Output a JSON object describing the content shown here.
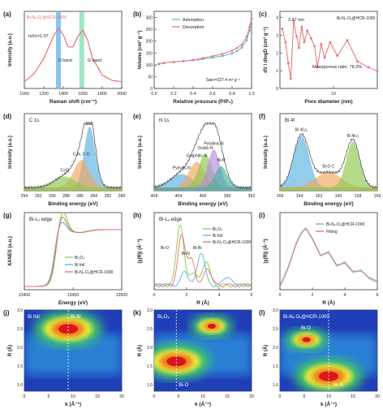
{
  "panels": [
    {
      "letter": "(a)",
      "xlabel": "Raman shift (cm⁻¹)",
      "ylabel": "Intensity (a.u.)",
      "xticks": [
        "1000",
        "1200",
        "1400",
        "1600",
        "1800",
        "2000"
      ],
      "legend": "Bi-Nₓ-Oₓ@HCR-1000",
      "ratio": "Iᴅ/Iɢ=1.07",
      "bands": [
        "D band",
        "G band"
      ]
    },
    {
      "letter": "(b)",
      "xlabel": "Relative pressure (P/P₀)",
      "ylabel": "Volume (cm³ g⁻¹)",
      "xticks": [
        "0.0",
        "0.2",
        "0.4",
        "0.6",
        "0.8",
        "1.0"
      ],
      "yticks": [
        "0",
        "50",
        "100",
        "150",
        "200",
        "250",
        "300"
      ],
      "series": [
        "Adsorption",
        "Desorption"
      ],
      "annotation": "Sʙᴇᴛ=227.4 m² g⁻¹"
    },
    {
      "letter": "(c)",
      "xlabel": "Pore diameter (nm)",
      "ylabel": "dV / dlogD (cm³ g⁻¹)",
      "xticks": [
        "10"
      ],
      "yticks": [
        "0",
        "1",
        "2",
        "3",
        "4"
      ],
      "legend": "Bi-Nₓ-Oₓ@HCR-1000",
      "peak": "3.47 nm",
      "annotation": "Mesoporous ratio: 78.2%"
    },
    {
      "letter": "(d)",
      "xlabel": "Binding energy (eV)",
      "ylabel": "Intensity (a.u.)",
      "xticks": [
        "294",
        "292",
        "290",
        "288",
        "286",
        "284",
        "282",
        "280"
      ],
      "title": "C 1s",
      "peaks": [
        "C-C",
        "C-N, C-O",
        "C=O"
      ]
    },
    {
      "letter": "(e)",
      "xlabel": "Binding energy (eV)",
      "ylabel": "Intensity (a.u.)",
      "xticks": [
        "408",
        "404",
        "400",
        "396",
        "392"
      ],
      "title": "N 1s",
      "peaks": [
        "Pyrrolic-N",
        "Graphitic-N",
        "Oxidic-N",
        "Pyridinic-N",
        "Bi-N"
      ]
    },
    {
      "letter": "(f)",
      "xlabel": "Binding energy (eV)",
      "ylabel": "Intensity (a.u.)",
      "xticks": [
        "166",
        "164",
        "162",
        "160",
        "158",
        "156"
      ],
      "title": "Bi 4f",
      "peaks": [
        "Bi 4f₅/₂",
        "Bi-O-C",
        "Bi 4f₇/₂"
      ]
    },
    {
      "letter": "(g)",
      "xlabel": "Energy (eV)",
      "ylabel": "XANES (a.u.)",
      "xticks": [
        "13400",
        "13450",
        "13500"
      ],
      "title": "Bi-L₃ edge",
      "series": [
        "Bi₂O₃",
        "Bi foil",
        "Bi-Nₓ-Oₓ@HCR-1000"
      ]
    },
    {
      "letter": "(h)",
      "xlabel": "R (Å)",
      "ylabel": "|χ(R)| (Å⁻³)",
      "xticks": [
        "0",
        "2",
        "4",
        "6"
      ],
      "title": "Bi-L₃ edge",
      "series": [
        "Bi₂O₃",
        "Bi foil",
        "Bi-Nₓ-Oₓ@HCR-1000"
      ],
      "peaks": [
        "Bi-O",
        "Bi-N",
        "Bi-Bi"
      ]
    },
    {
      "letter": "(i)",
      "xlabel": "R (Å)",
      "ylabel": "|χ(R)| (Å⁻³)",
      "xticks": [
        "0",
        "2",
        "4",
        "6"
      ],
      "series": [
        "Bi-Nₓ-Oₓ@HCR-1000",
        "Fitting"
      ]
    },
    {
      "letter": "(j)",
      "xlabel": "k (Å⁻¹)",
      "ylabel": "R (Å)",
      "xticks": [
        "0",
        "5",
        "10",
        "15",
        "20"
      ],
      "yticks": [
        "1.0",
        "1.5",
        "2.0",
        "2.5",
        "3.0"
      ],
      "sample": "Bi foil",
      "feature": "Bi-Bi"
    },
    {
      "letter": "(k)",
      "xlabel": "k (Å⁻¹)",
      "ylabel": "R (Å)",
      "xticks": [
        "0",
        "5",
        "10",
        "15",
        "20"
      ],
      "yticks": [
        "1.0",
        "1.5",
        "2.0",
        "2.5",
        "3.0"
      ],
      "sample": "Bi₂O₃",
      "feature": "Bi-O"
    },
    {
      "letter": "(l)",
      "xlabel": "k (Å⁻¹)",
      "ylabel": "R (Å)",
      "xticks": [
        "0",
        "5",
        "10",
        "15",
        "20"
      ],
      "yticks": [
        "1.0",
        "1.5",
        "2.0",
        "2.5",
        "3.0"
      ],
      "sample": "Bi-Nₓ-Oₓ@HCR-1000",
      "features": [
        "Bi-O",
        "Bi-N"
      ]
    }
  ],
  "chart_data": [
    {
      "panel": "a",
      "type": "line",
      "xlim": [
        1000,
        2000
      ],
      "series": [
        {
          "x": [
            1000,
            1100,
            1200,
            1300,
            1350,
            1400,
            1450,
            1500,
            1550,
            1600,
            1650,
            1700,
            1800,
            1900,
            2000
          ],
          "y": [
            0.1,
            0.22,
            0.45,
            0.78,
            0.9,
            0.8,
            0.62,
            0.62,
            0.78,
            0.87,
            0.72,
            0.45,
            0.2,
            0.12,
            0.1
          ]
        }
      ],
      "band_centers": [
        1350,
        1590
      ]
    },
    {
      "panel": "b",
      "type": "line",
      "xlim": [
        0,
        1
      ],
      "ylim": [
        0,
        300
      ],
      "series": [
        {
          "name": "Adsorption",
          "x": [
            0.01,
            0.05,
            0.1,
            0.2,
            0.3,
            0.4,
            0.5,
            0.6,
            0.7,
            0.8,
            0.85,
            0.9,
            0.95,
            0.98,
            1.0
          ],
          "y": [
            95,
            102,
            106,
            110,
            114,
            118,
            122,
            128,
            135,
            145,
            155,
            170,
            200,
            240,
            290
          ]
        },
        {
          "name": "Desorption",
          "x": [
            1.0,
            0.98,
            0.95,
            0.9,
            0.85,
            0.8,
            0.7,
            0.6,
            0.5,
            0.45,
            0.4,
            0.3,
            0.2,
            0.1,
            0.05
          ],
          "y": [
            290,
            255,
            215,
            182,
            168,
            157,
            143,
            134,
            126,
            120,
            118,
            114,
            110,
            106,
            102
          ]
        }
      ]
    },
    {
      "panel": "c",
      "type": "line",
      "xscale": "log",
      "xlim": [
        2,
        100
      ],
      "ylim": [
        0,
        4
      ],
      "series": [
        {
          "x": [
            2.2,
            2.5,
            2.8,
            3.1,
            3.47,
            3.9,
            4.3,
            4.8,
            5.3,
            6.0,
            7.0,
            8.0,
            9.0,
            10.5,
            12,
            15,
            20,
            30,
            45,
            70,
            100
          ],
          "y": [
            3.1,
            2.4,
            1.3,
            0.5,
            3.5,
            2.7,
            2.1,
            3.2,
            2.4,
            3.0,
            2.6,
            2.2,
            1.1,
            2.3,
            1.6,
            2.4,
            1.7,
            2.5,
            1.4,
            1.1,
            0.9
          ]
        }
      ]
    },
    {
      "panel": "d",
      "type": "area",
      "xlim": [
        294,
        280
      ],
      "reversed": true,
      "peaks": [
        {
          "name": "C-C",
          "center": 284.6,
          "height": 1.0,
          "width": 0.8
        },
        {
          "name": "C-N, C-O",
          "center": 285.8,
          "height": 0.45,
          "width": 1.1
        },
        {
          "name": "C=O",
          "center": 288.2,
          "height": 0.18,
          "width": 1.5
        }
      ]
    },
    {
      "panel": "e",
      "type": "area",
      "xlim": [
        408,
        392
      ],
      "reversed": true,
      "peaks": [
        {
          "name": "Oxidic-N",
          "center": 403.5,
          "height": 0.22,
          "width": 1.8
        },
        {
          "name": "Graphitic-N",
          "center": 401.0,
          "height": 0.42,
          "width": 1.3
        },
        {
          "name": "Pyrrolic-N",
          "center": 399.6,
          "height": 0.55,
          "width": 1.1
        },
        {
          "name": "Pyridinic-N",
          "center": 398.2,
          "height": 0.62,
          "width": 1.0
        },
        {
          "name": "Bi-N",
          "center": 397.0,
          "height": 0.35,
          "width": 1.0
        }
      ]
    },
    {
      "panel": "f",
      "type": "area",
      "xlim": [
        166,
        156
      ],
      "reversed": true,
      "peaks": [
        {
          "name": "Bi 4f5/2",
          "center": 163.8,
          "height": 0.85,
          "width": 0.8
        },
        {
          "name": "Bi-O-C",
          "center": 161.0,
          "height": 0.25,
          "width": 1.3
        },
        {
          "name": "Bi 4f7/2",
          "center": 158.5,
          "height": 0.75,
          "width": 0.7
        }
      ]
    },
    {
      "panel": "g",
      "type": "line",
      "xlim": [
        13380,
        13520
      ],
      "series": [
        {
          "name": "Bi2O3",
          "edge": 13425,
          "peak": 1.12
        },
        {
          "name": "Bi foil",
          "edge": 13423,
          "peak": 1.06
        },
        {
          "name": "Bi-NxOx@HCR-1000",
          "edge": 13424,
          "peak": 1.09
        }
      ]
    },
    {
      "panel": "h",
      "type": "line",
      "xlim": [
        0,
        6
      ],
      "series": [
        {
          "name": "Bi2O3",
          "peaks": [
            [
              1.6,
              0.55
            ],
            [
              3.2,
              0.22
            ],
            [
              2.4,
              0.12
            ]
          ]
        },
        {
          "name": "Bi foil",
          "peaks": [
            [
              2.9,
              0.3
            ],
            [
              1.9,
              0.12
            ],
            [
              4.5,
              0.08
            ]
          ]
        },
        {
          "name": "Bi-NxOx@HCR-1000",
          "peaks": [
            [
              1.7,
              0.45
            ],
            [
              2.3,
              0.22
            ],
            [
              3.3,
              0.15
            ]
          ]
        }
      ]
    },
    {
      "panel": "i",
      "type": "line",
      "xlim": [
        0,
        6
      ],
      "series": [
        {
          "name": "Bi-NxOx@HCR-1000",
          "x": [
            0,
            0.5,
            1,
            1.3,
            1.6,
            2,
            2.5,
            3,
            3.5,
            4,
            4.5,
            5,
            5.5,
            6
          ],
          "y": [
            0.05,
            0.35,
            0.75,
            0.92,
            1.0,
            0.82,
            0.55,
            0.62,
            0.38,
            0.45,
            0.28,
            0.32,
            0.18,
            0.12
          ]
        },
        {
          "name": "Fitting",
          "x": [
            0,
            0.5,
            1,
            1.3,
            1.6,
            2,
            2.5,
            3,
            3.5,
            4,
            4.5,
            5,
            5.5,
            6
          ],
          "y": [
            0.06,
            0.36,
            0.74,
            0.91,
            0.99,
            0.83,
            0.56,
            0.6,
            0.4,
            0.43,
            0.3,
            0.3,
            0.2,
            0.14
          ]
        }
      ]
    },
    {
      "panel": "j",
      "type": "heatmap",
      "xlim": [
        0,
        20
      ],
      "ylim": [
        0.5,
        3.5
      ],
      "maxima": [
        [
          9,
          2.8
        ]
      ]
    },
    {
      "panel": "k",
      "type": "heatmap",
      "xlim": [
        0,
        22
      ],
      "ylim": [
        0.5,
        3.5
      ],
      "maxima": [
        [
          5,
          1.6
        ],
        [
          13,
          2.9
        ]
      ]
    },
    {
      "panel": "l",
      "type": "heatmap",
      "xlim": [
        0,
        22
      ],
      "ylim": [
        0.5,
        3.5
      ],
      "maxima": [
        [
          11,
          1.05
        ],
        [
          6,
          2.4
        ]
      ]
    }
  ]
}
